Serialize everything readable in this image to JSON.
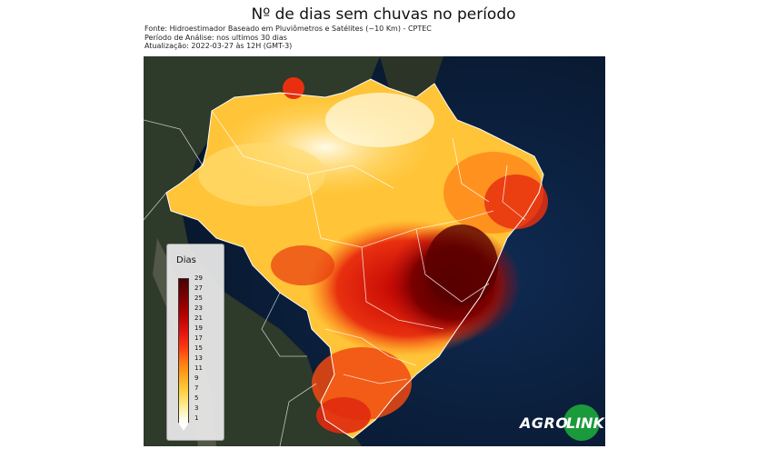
{
  "title": "Nº de dias sem chuvas no período",
  "meta": {
    "source": "Fonte: Hidroestimador Baseado em Pluviômetros e Satélites (~10 Km) - CPTEC",
    "period": "Período de Análise: nos ultimos 30 dias",
    "updated": "Atualização: 2022-03-27 às 12H (GMT-3)"
  },
  "legend": {
    "title": "Dias",
    "ticks": [
      "29",
      "27",
      "25",
      "23",
      "21",
      "19",
      "17",
      "15",
      "13",
      "11",
      "9",
      "7",
      "5",
      "3",
      "1"
    ]
  },
  "logo": {
    "left": "AGRO",
    "right": "LINK"
  },
  "colors": {
    "ocean": "#0a1a33",
    "land": "#2b3528",
    "low_days": "#fff4c0",
    "mid_days": "#ff8a10",
    "high_days": "#c00000",
    "max_days": "#5a0000",
    "logo_green": "#1a9a3a"
  }
}
